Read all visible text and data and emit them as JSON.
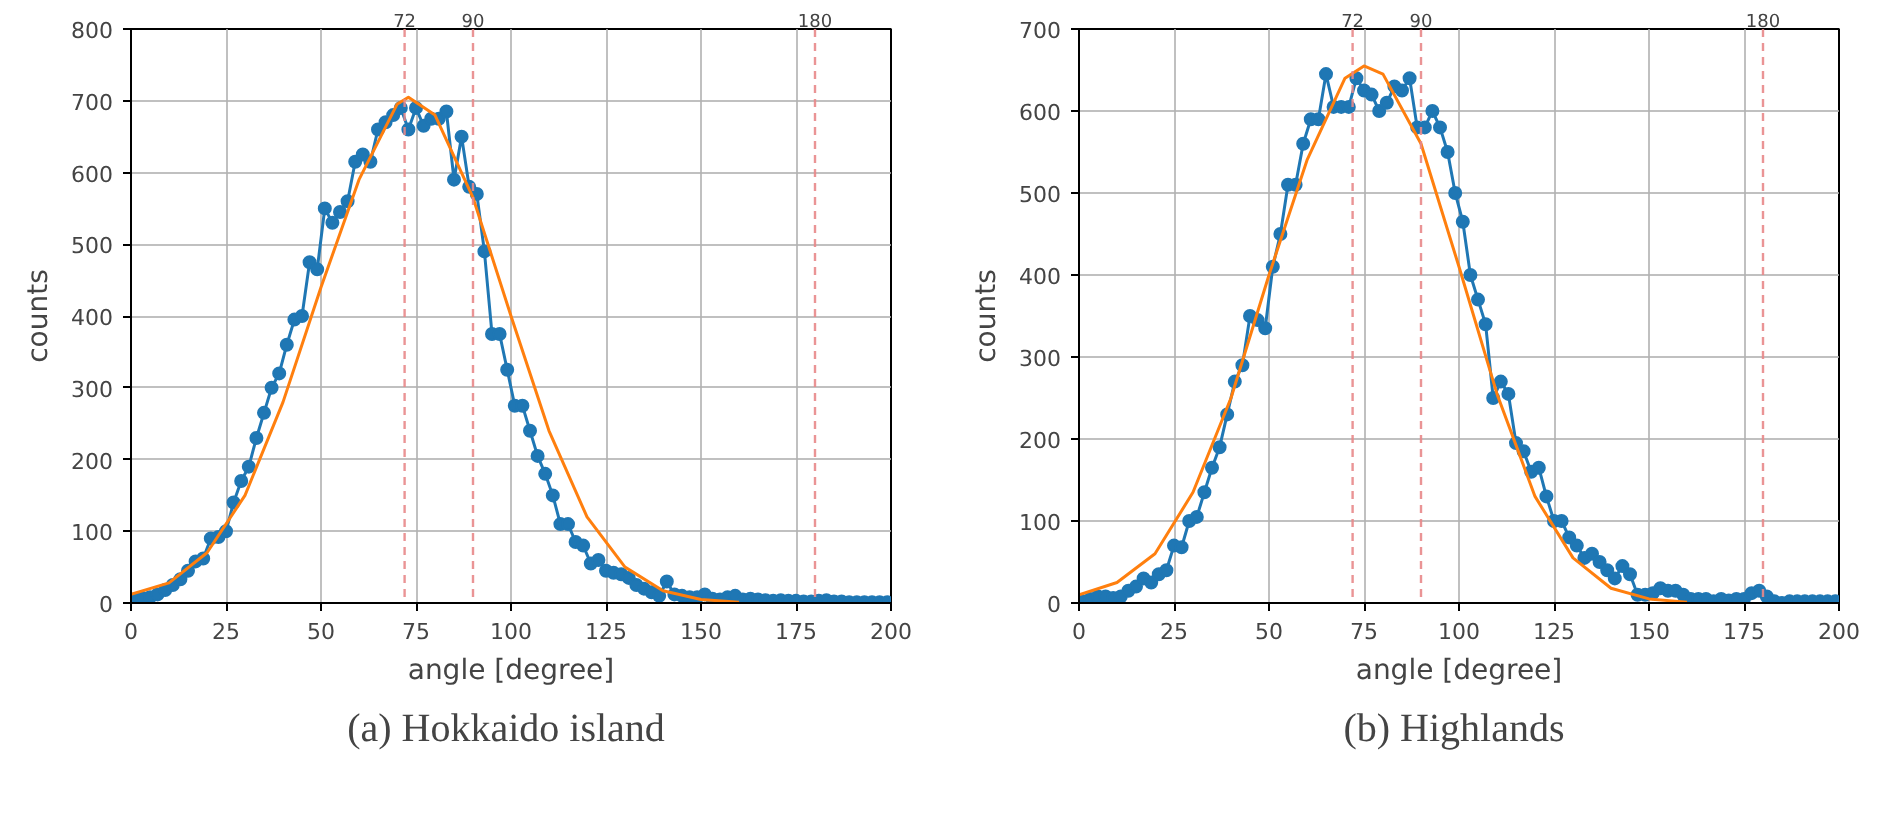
{
  "chart_data": [
    {
      "type": "line",
      "title": "(a)  Hokkaido island",
      "xlabel": "angle [degree]",
      "ylabel": "counts",
      "xlim": [
        0,
        200
      ],
      "xticks": [
        0,
        25,
        50,
        75,
        100,
        125,
        150,
        175,
        200
      ],
      "ylim": [
        0,
        800
      ],
      "yticks": [
        0,
        100,
        200,
        300,
        400,
        500,
        600,
        700,
        800
      ],
      "grid": true,
      "ref_lines": [
        {
          "axis": "x",
          "value": 72,
          "label": "72",
          "color": "#e8888a",
          "line_style": "dashed"
        },
        {
          "axis": "x",
          "value": 90,
          "label": "90",
          "color": "#e8888a",
          "line_style": "dashed"
        },
        {
          "axis": "x",
          "value": 180,
          "label": "180",
          "color": "#e8888a",
          "line_style": "dashed"
        }
      ],
      "series": [
        {
          "color": "#1f77b4",
          "marker": "circle",
          "x": [
            1,
            3,
            5,
            7,
            9,
            11,
            13,
            15,
            17,
            19,
            21,
            23,
            25,
            27,
            29,
            31,
            33,
            35,
            37,
            39,
            41,
            43,
            45,
            47,
            49,
            51,
            53,
            55,
            57,
            59,
            61,
            63,
            65,
            67,
            69,
            71,
            73,
            75,
            77,
            79,
            81,
            83,
            85,
            87,
            89,
            91,
            93,
            95,
            97,
            99,
            101,
            103,
            105,
            107,
            109,
            111,
            113,
            115,
            117,
            119,
            121,
            123,
            125,
            127,
            129,
            131,
            133,
            135,
            137,
            139,
            141,
            143,
            145,
            147,
            149,
            151,
            153,
            155,
            157,
            159,
            161,
            163,
            165,
            167,
            169,
            171,
            173,
            175,
            177,
            179,
            181,
            183,
            185,
            187,
            189,
            191,
            193,
            195,
            197,
            199
          ],
          "values": [
            5,
            7,
            8,
            12,
            18,
            25,
            33,
            45,
            58,
            62,
            90,
            92,
            100,
            140,
            170,
            190,
            230,
            265,
            300,
            320,
            360,
            395,
            400,
            475,
            465,
            550,
            530,
            545,
            560,
            615,
            625,
            615,
            660,
            670,
            680,
            690,
            660,
            690,
            665,
            675,
            675,
            685,
            590,
            650,
            580,
            570,
            490,
            375,
            375,
            325,
            275,
            275,
            240,
            205,
            180,
            150,
            110,
            110,
            85,
            80,
            55,
            60,
            45,
            42,
            40,
            35,
            25,
            20,
            15,
            10,
            30,
            12,
            10,
            8,
            8,
            12,
            6,
            5,
            8,
            10,
            5,
            6,
            5,
            4,
            3,
            4,
            3,
            3,
            2,
            2,
            3,
            4,
            2,
            2,
            1,
            1,
            1,
            1,
            1,
            1
          ]
        },
        {
          "color": "#ff7f0e",
          "marker": "none",
          "x": [
            0,
            10,
            20,
            30,
            40,
            50,
            60,
            70,
            73,
            80,
            90,
            100,
            110,
            120,
            130,
            140,
            150,
            160
          ],
          "values": [
            12,
            28,
            70,
            150,
            280,
            440,
            590,
            695,
            705,
            680,
            565,
            400,
            240,
            120,
            50,
            17,
            5,
            1
          ]
        }
      ]
    },
    {
      "type": "line",
      "title": "(b)  Highlands",
      "xlabel": "angle [degree]",
      "ylabel": "counts",
      "xlim": [
        0,
        200
      ],
      "xticks": [
        0,
        25,
        50,
        75,
        100,
        125,
        150,
        175,
        200
      ],
      "ylim": [
        0,
        700
      ],
      "yticks": [
        0,
        100,
        200,
        300,
        400,
        500,
        600,
        700
      ],
      "grid": true,
      "ref_lines": [
        {
          "axis": "x",
          "value": 72,
          "label": "72",
          "color": "#e8888a",
          "line_style": "dashed"
        },
        {
          "axis": "x",
          "value": 90,
          "label": "90",
          "color": "#e8888a",
          "line_style": "dashed"
        },
        {
          "axis": "x",
          "value": 180,
          "label": "180",
          "color": "#e8888a",
          "line_style": "dashed"
        }
      ],
      "series": [
        {
          "color": "#1f77b4",
          "marker": "circle",
          "x": [
            1,
            3,
            5,
            7,
            9,
            11,
            13,
            15,
            17,
            19,
            21,
            23,
            25,
            27,
            29,
            31,
            33,
            35,
            37,
            39,
            41,
            43,
            45,
            47,
            49,
            51,
            53,
            55,
            57,
            59,
            61,
            63,
            65,
            67,
            69,
            71,
            73,
            75,
            77,
            79,
            81,
            83,
            85,
            87,
            89,
            91,
            93,
            95,
            97,
            99,
            101,
            103,
            105,
            107,
            109,
            111,
            113,
            115,
            117,
            119,
            121,
            123,
            125,
            127,
            129,
            131,
            133,
            135,
            137,
            139,
            141,
            143,
            145,
            147,
            149,
            151,
            153,
            155,
            157,
            159,
            161,
            163,
            165,
            167,
            169,
            171,
            173,
            175,
            177,
            179,
            181,
            183,
            185,
            187,
            189,
            191,
            193,
            195,
            197,
            199
          ],
          "values": [
            2,
            5,
            8,
            8,
            6,
            8,
            15,
            20,
            30,
            25,
            35,
            40,
            70,
            68,
            100,
            105,
            135,
            165,
            190,
            230,
            270,
            290,
            350,
            345,
            335,
            410,
            450,
            510,
            510,
            560,
            590,
            590,
            645,
            605,
            605,
            605,
            640,
            625,
            620,
            600,
            610,
            630,
            625,
            640,
            580,
            580,
            600,
            580,
            550,
            500,
            465,
            400,
            370,
            340,
            250,
            270,
            255,
            195,
            185,
            160,
            165,
            130,
            100,
            100,
            80,
            70,
            55,
            60,
            50,
            40,
            30,
            45,
            35,
            10,
            10,
            12,
            18,
            15,
            15,
            10,
            5,
            5,
            5,
            2,
            5,
            3,
            5,
            5,
            12,
            15,
            8,
            2,
            0,
            2,
            2,
            2,
            2,
            2,
            2,
            2
          ]
        },
        {
          "color": "#ff7f0e",
          "marker": "none",
          "x": [
            0,
            10,
            20,
            30,
            40,
            50,
            60,
            70,
            75,
            80,
            90,
            100,
            110,
            120,
            130,
            140,
            150,
            160
          ],
          "values": [
            10,
            25,
            60,
            135,
            250,
            400,
            540,
            640,
            655,
            645,
            560,
            410,
            255,
            130,
            55,
            18,
            5,
            1
          ]
        }
      ]
    }
  ]
}
